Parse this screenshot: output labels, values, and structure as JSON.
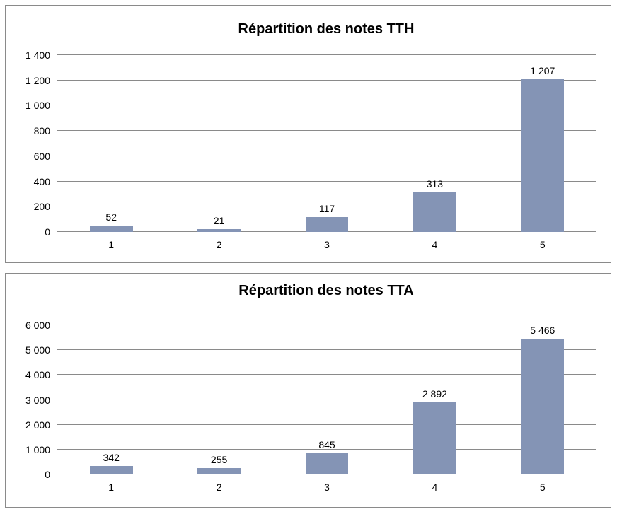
{
  "colors": {
    "background": "#FFFFFF",
    "bar_fill": "#8494B5",
    "gridline": "#8A8A8A",
    "panel_border": "#8A8A8A",
    "text": "#000000"
  },
  "chart_data": [
    {
      "type": "bar",
      "title": "Répartition des notes TTH",
      "categories": [
        "1",
        "2",
        "3",
        "4",
        "5"
      ],
      "values": [
        52,
        21,
        117,
        313,
        1207
      ],
      "value_labels": [
        "52",
        "21",
        "117",
        "313",
        "1 207"
      ],
      "xlabel": "",
      "ylabel": "",
      "ylim": [
        0,
        1400
      ],
      "ytick_step": 200,
      "ytick_labels": [
        "0",
        "200",
        "400",
        "600",
        "800",
        "1 000",
        "1 200",
        "1 400"
      ],
      "grid": true,
      "legend": false
    },
    {
      "type": "bar",
      "title": "Répartition des notes TTA",
      "categories": [
        "1",
        "2",
        "3",
        "4",
        "5"
      ],
      "values": [
        342,
        255,
        845,
        2892,
        5466
      ],
      "value_labels": [
        "342",
        "255",
        "845",
        "2 892",
        "5 466"
      ],
      "xlabel": "",
      "ylabel": "",
      "ylim": [
        0,
        6000
      ],
      "ytick_step": 1000,
      "ytick_labels": [
        "0",
        "1 000",
        "2 000",
        "3 000",
        "4 000",
        "5 000",
        "6 000"
      ],
      "grid": true,
      "legend": false
    }
  ]
}
